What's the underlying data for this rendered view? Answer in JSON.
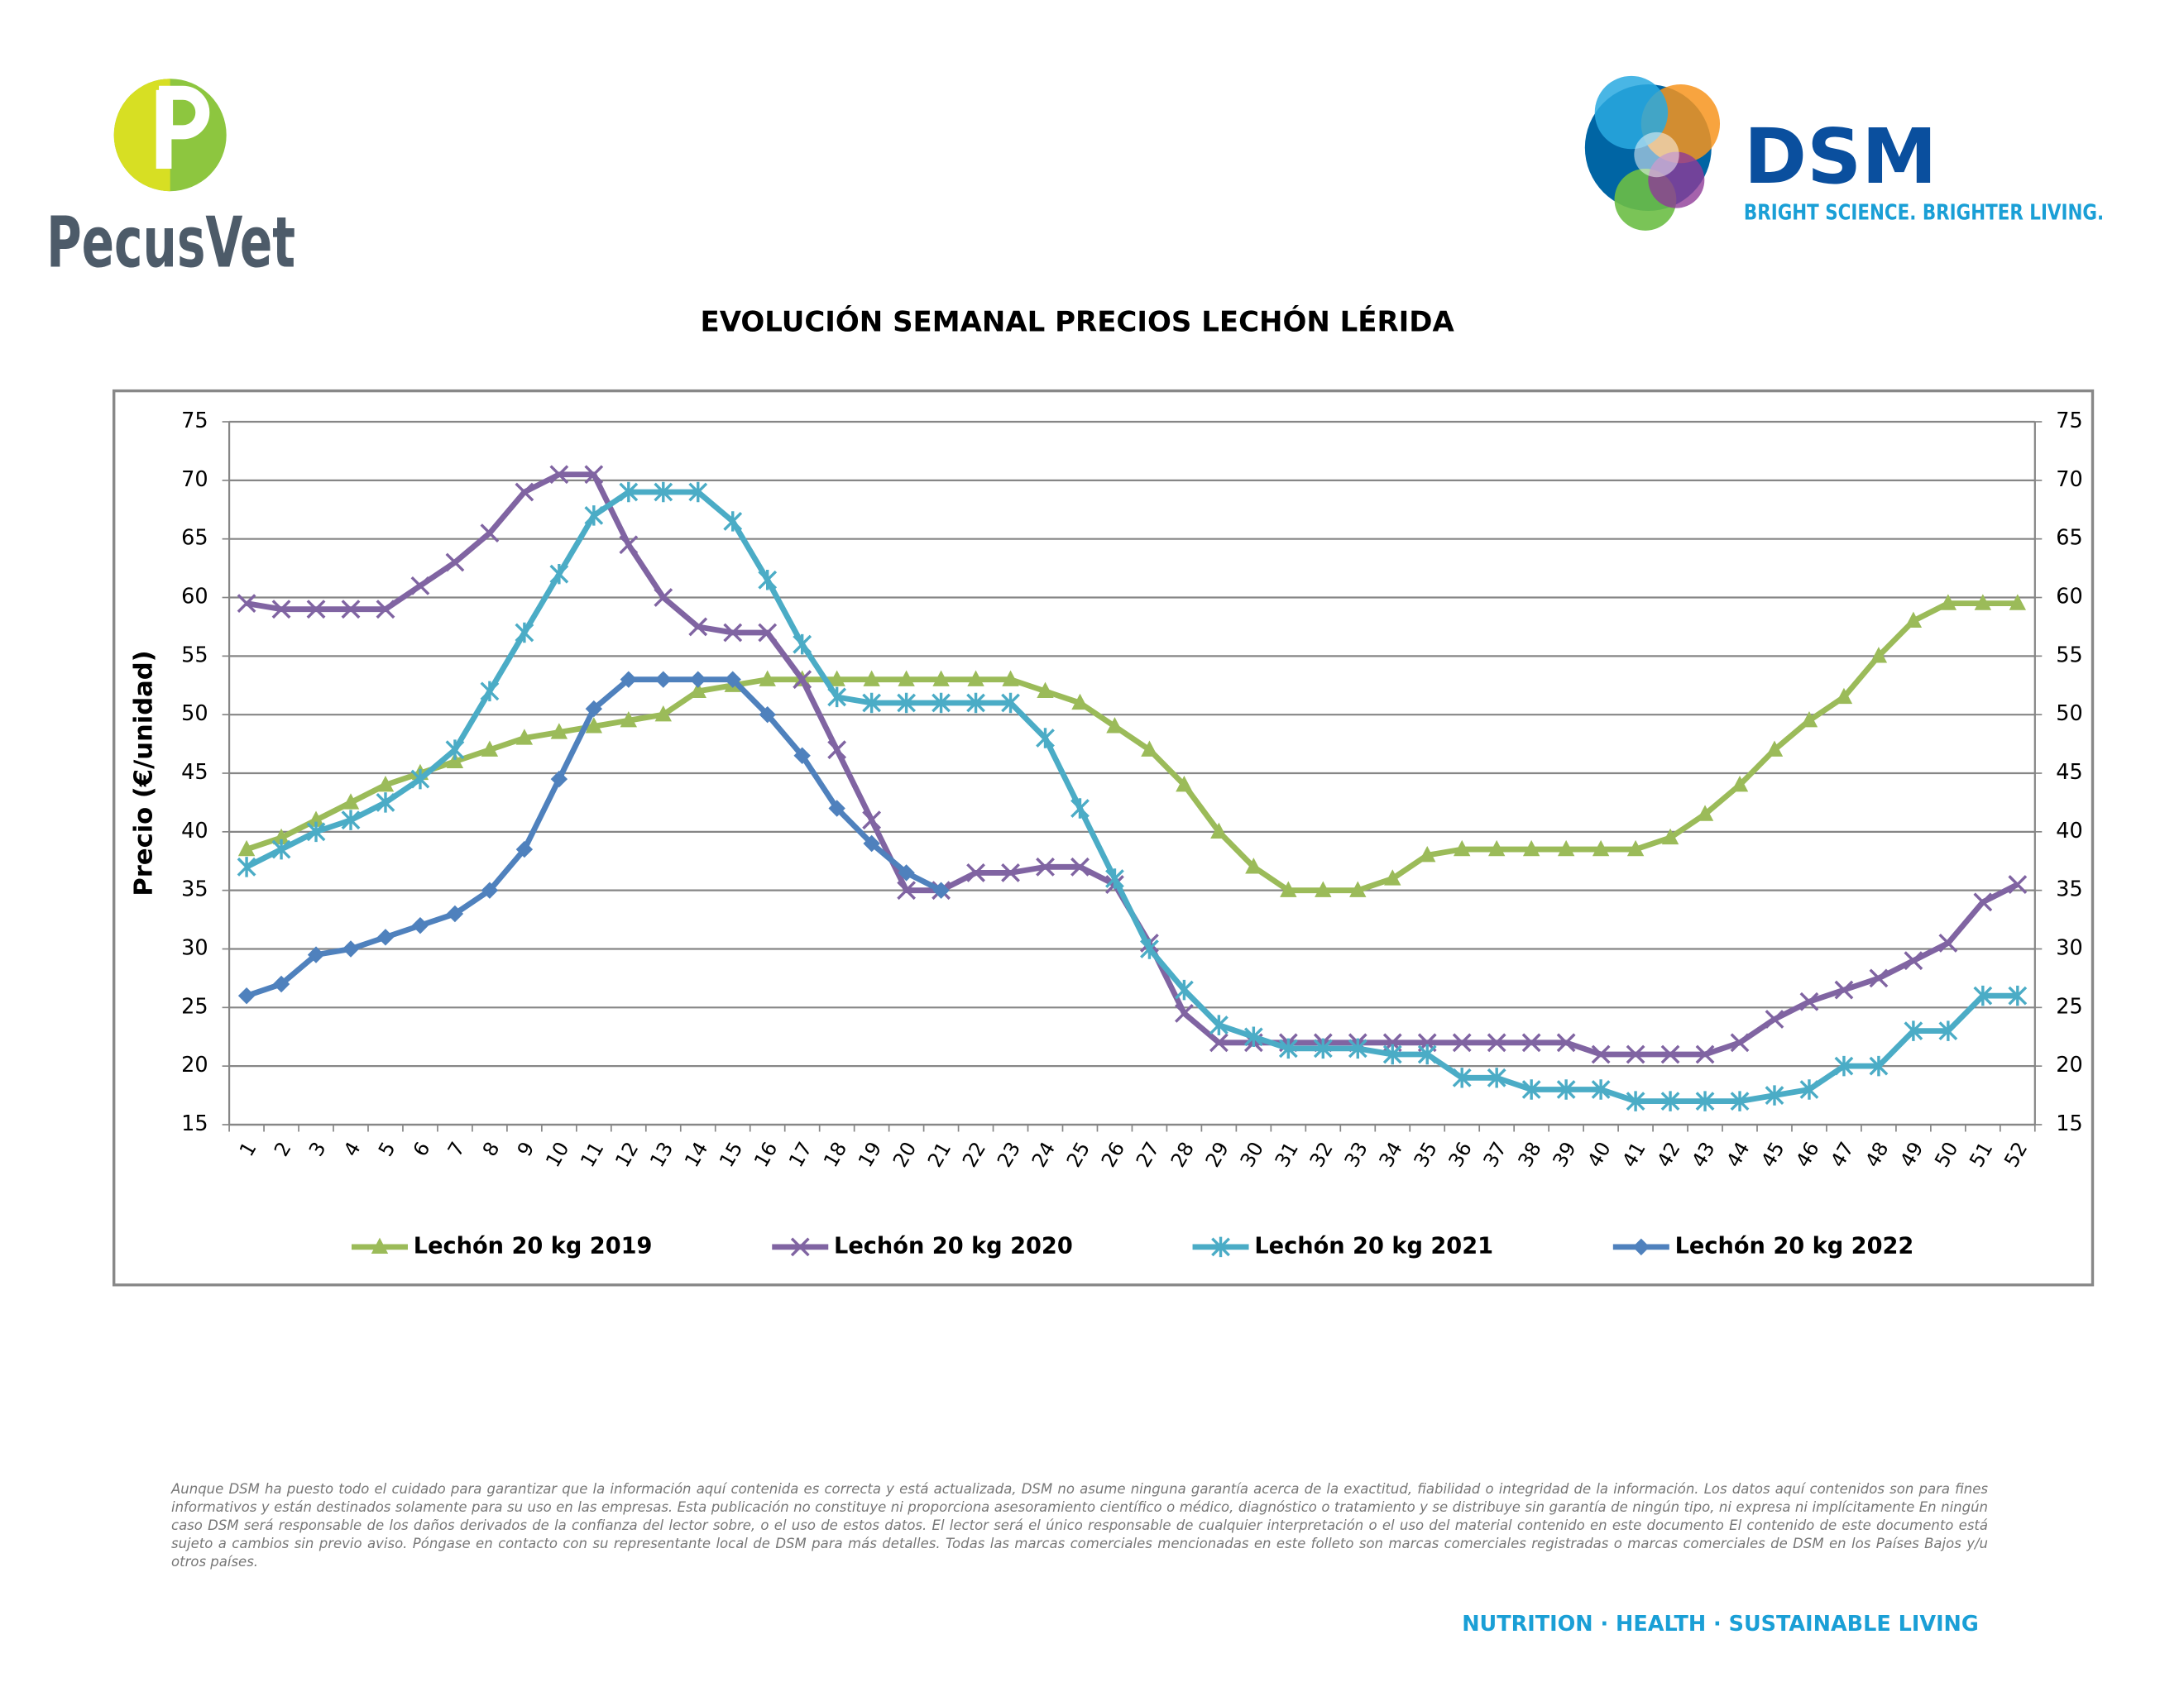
{
  "header": {
    "left_logo": "PecusVet",
    "right_logo": "DSM",
    "tagline": "BRIGHT SCIENCE. BRIGHTER LIVING."
  },
  "chart_data": {
    "type": "line",
    "title": "EVOLUCIÓN SEMANAL PRECIOS LECHÓN LÉRIDA",
    "y_label": "Precio (€/unidad)",
    "categories": [
      "1",
      "2",
      "3",
      "4",
      "5",
      "6",
      "7",
      "8",
      "9",
      "10",
      "11",
      "12",
      "13",
      "14",
      "15",
      "16",
      "17",
      "18",
      "19",
      "20",
      "21",
      "22",
      "23",
      "24",
      "25",
      "26",
      "27",
      "28",
      "29",
      "30",
      "31",
      "32",
      "33",
      "34",
      "35",
      "36",
      "37",
      "38",
      "39",
      "40",
      "41",
      "42",
      "43",
      "44",
      "45",
      "46",
      "47",
      "48",
      "49",
      "50",
      "51",
      "52"
    ],
    "ylim": [
      15,
      75
    ],
    "yticks": [
      15,
      20,
      25,
      30,
      35,
      40,
      45,
      50,
      55,
      60,
      65,
      70,
      75
    ],
    "y2lim": [
      15,
      75
    ],
    "y2ticks": [
      15,
      20,
      25,
      30,
      35,
      40,
      45,
      50,
      55,
      60,
      65,
      70,
      75
    ],
    "grid": true,
    "legend": "bottom",
    "series": [
      {
        "name": "Lechón 20 kg 2019",
        "color": "#9bbb59",
        "marker": "triangle",
        "values": [
          38.5,
          39.5,
          41,
          42.5,
          44,
          45,
          46,
          47,
          48,
          48.5,
          49,
          49.5,
          50,
          52,
          52.5,
          53,
          53,
          53,
          53,
          53,
          53,
          53,
          53,
          52,
          51,
          49,
          47,
          44,
          40,
          37,
          35,
          35,
          35,
          36,
          38,
          38.5,
          38.5,
          38.5,
          38.5,
          38.5,
          38.5,
          39.5,
          41.5,
          44,
          47,
          49.5,
          51.5,
          55,
          58,
          59.5,
          59.5,
          59.5
        ]
      },
      {
        "name": "Lechón 20 kg 2020",
        "color": "#8064a2",
        "marker": "x",
        "values": [
          59.5,
          59,
          59,
          59,
          59,
          61,
          63,
          65.5,
          69,
          70.5,
          70.5,
          64.5,
          60,
          57.5,
          57,
          57,
          53,
          47,
          41,
          35,
          35,
          36.5,
          36.5,
          37,
          37,
          35.5,
          30.5,
          24.5,
          22,
          22,
          22,
          22,
          22,
          22,
          22,
          22,
          22,
          22,
          22,
          21,
          21,
          21,
          21,
          22,
          24,
          25.5,
          26.5,
          27.5,
          29,
          30.5,
          34,
          35.5
        ]
      },
      {
        "name": "Lechón 20 kg 2021",
        "color": "#4bacc6",
        "marker": "star",
        "values": [
          37,
          38.5,
          40,
          41,
          42.5,
          44.5,
          47,
          52,
          57,
          62,
          67,
          69,
          69,
          69,
          66.5,
          61.5,
          56,
          51.5,
          51,
          51,
          51,
          51,
          51,
          48,
          42,
          36,
          30,
          26.5,
          23.5,
          22.5,
          21.5,
          21.5,
          21.5,
          21,
          21,
          19,
          19,
          18,
          18,
          18,
          17,
          17,
          17,
          17,
          17.5,
          18,
          20,
          20,
          23,
          23,
          26,
          26
        ]
      },
      {
        "name": "Lechón 20 kg 2022",
        "color": "#4f81bd",
        "marker": "diamond",
        "values": [
          26,
          27,
          29.5,
          30,
          31,
          32,
          33,
          35,
          38.5,
          44.5,
          50.5,
          53,
          53,
          53,
          53,
          50,
          46.5,
          42,
          39,
          36.5,
          35,
          null,
          null,
          null,
          null,
          null,
          null,
          null,
          null,
          null,
          null,
          null,
          null,
          null,
          null,
          null,
          null,
          null,
          null,
          null,
          null,
          null,
          null,
          null,
          null,
          null,
          null,
          null,
          null,
          null,
          null,
          null
        ]
      }
    ]
  },
  "footer": {
    "disclaimer": "Aunque DSM ha puesto todo el cuidado para garantizar que la información aquí contenida es correcta y está actualizada, DSM no asume ninguna garantía acerca de la exactitud, fiabilidad o integridad de la información. Los datos aquí contenidos son para fines informativos y están destinados solamente para su uso en las empresas. Esta publicación no constituye ni proporciona asesoramiento científico o médico, diagnóstico o tratamiento y se distribuye sin garantía de ningún tipo, ni expresa ni implícitamente En ningún caso DSM será responsable de los daños derivados de la confianza del lector sobre, o el uso de estos datos. El lector será el único responsable de cualquier interpretación o el uso del material contenido en este documento El contenido de este documento está sujeto a cambios sin previo aviso. Póngase en contacto con su representante local de DSM para más detalles. Todas las marcas comerciales mencionadas en este folleto son marcas comerciales registradas o marcas comerciales de DSM en los Países Bajos y/u otros países.",
    "slogan": "NUTRITION · HEALTH · SUSTAINABLE LIVING"
  }
}
